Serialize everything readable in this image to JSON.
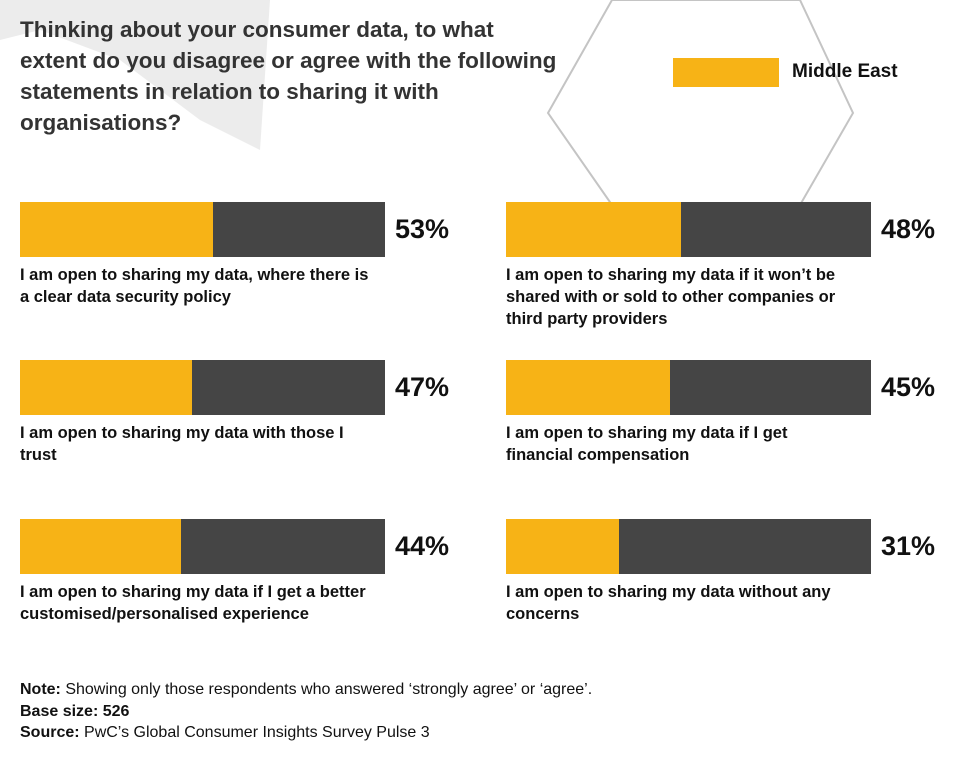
{
  "title": "Thinking about your consumer data, to what extent do you disagree or agree with the following statements in relation to sharing it with organisations?",
  "legend": {
    "label": "Middle East",
    "color": "#f7b316"
  },
  "colors": {
    "agree": "#f7b316",
    "remainder": "#454545"
  },
  "chart_data": {
    "type": "bar",
    "title": "Thinking about your consumer data, to what extent do you disagree or agree with the following statements in relation to sharing it with organisations?",
    "series": [
      {
        "name": "Middle East",
        "values": [
          53,
          48,
          47,
          45,
          44,
          31
        ]
      }
    ],
    "categories": [
      "I am open to sharing my data, where there is a clear data security policy",
      "I am open to sharing my data if it won’t be shared with or sold to other companies or third party providers",
      "I am open to sharing my data with those I trust",
      "I am open to sharing my data if I get financial compensation",
      "I am open to sharing my data if I get a better customised/personalised experience",
      "I am open to sharing my data without any concerns"
    ],
    "value_labels": [
      "53%",
      "48%",
      "47%",
      "45%",
      "44%",
      "31%"
    ],
    "ylim": [
      0,
      100
    ],
    "legend": "top-right"
  },
  "footer": {
    "note_label": "Note:",
    "note_text": " Showing only those respondents who answered ‘strongly agree’ or ‘agree’.",
    "base_label": "Base size: 526",
    "source_label": "Source:",
    "source_text": " PwC’s Global Consumer Insights Survey Pulse 3"
  }
}
